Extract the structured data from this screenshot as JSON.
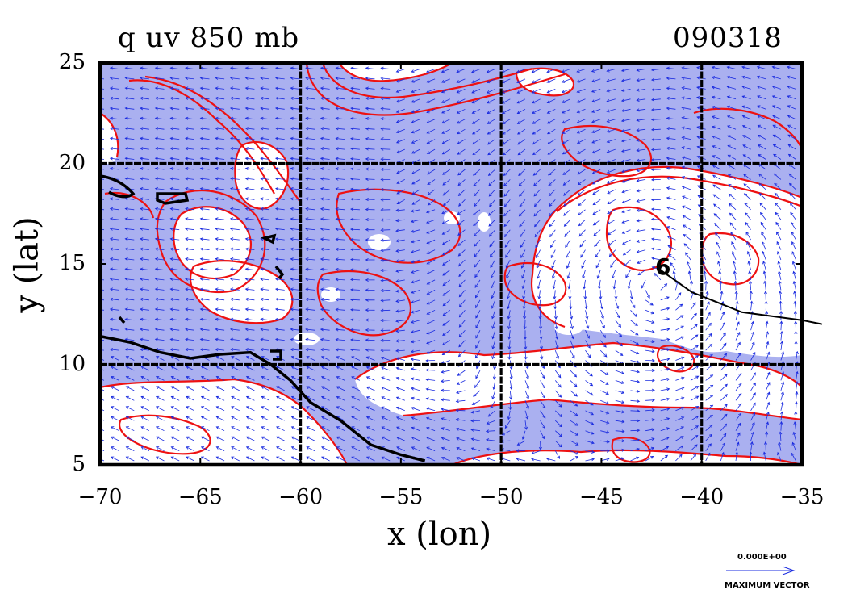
{
  "figure": {
    "title_left": "q uv 850 mb",
    "title_right": "090318",
    "xlabel": "x (lon)",
    "ylabel": "y (lat)",
    "xticks": [
      "−70",
      "−65",
      "−60",
      "−55",
      "−50",
      "−45",
      "−40",
      "−35"
    ],
    "yticks": [
      "25",
      "20",
      "15",
      "10",
      "5"
    ],
    "legend_value": "0.000E+00",
    "legend_label": "MAXIMUM VECTOR",
    "storm_symbol": "6"
  },
  "chart_data": {
    "type": "map",
    "title": "q uv 850 mb",
    "date_label": "090318",
    "xlabel": "x (lon)",
    "ylabel": "y (lat)",
    "xlim": [
      -70,
      -35
    ],
    "ylim": [
      5,
      25
    ],
    "xtick_values": [
      -70,
      -65,
      -60,
      -55,
      -50,
      -45,
      -40,
      -35
    ],
    "ytick_values": [
      5,
      10,
      15,
      20,
      25
    ],
    "grid_lines": {
      "lon": [
        -60,
        -50,
        -40
      ],
      "lat": [
        10,
        20
      ]
    },
    "colors": {
      "fill": "#aab0f0",
      "contour": "#ee1111",
      "vectors": "#1a2be0",
      "coast": "#000000",
      "frame": "#000000"
    },
    "storm_track": [
      [
        -42.2,
        14.8
      ],
      [
        -40.5,
        13.6
      ],
      [
        -38.0,
        12.6
      ],
      [
        -35.0,
        12.2
      ],
      [
        -34.0,
        12.0
      ]
    ],
    "coastline": [
      [
        -70,
        11.4
      ],
      [
        -68.5,
        11.1
      ],
      [
        -67.0,
        10.6
      ],
      [
        -65.5,
        10.3
      ],
      [
        -64.0,
        10.5
      ],
      [
        -62.5,
        10.6
      ],
      [
        -61.5,
        10.0
      ],
      [
        -60.5,
        9.2
      ],
      [
        -59.5,
        8.1
      ],
      [
        -58.0,
        7.2
      ],
      [
        -56.5,
        6.0
      ],
      [
        -55.0,
        5.5
      ],
      [
        -53.8,
        5.2
      ]
    ]
  }
}
